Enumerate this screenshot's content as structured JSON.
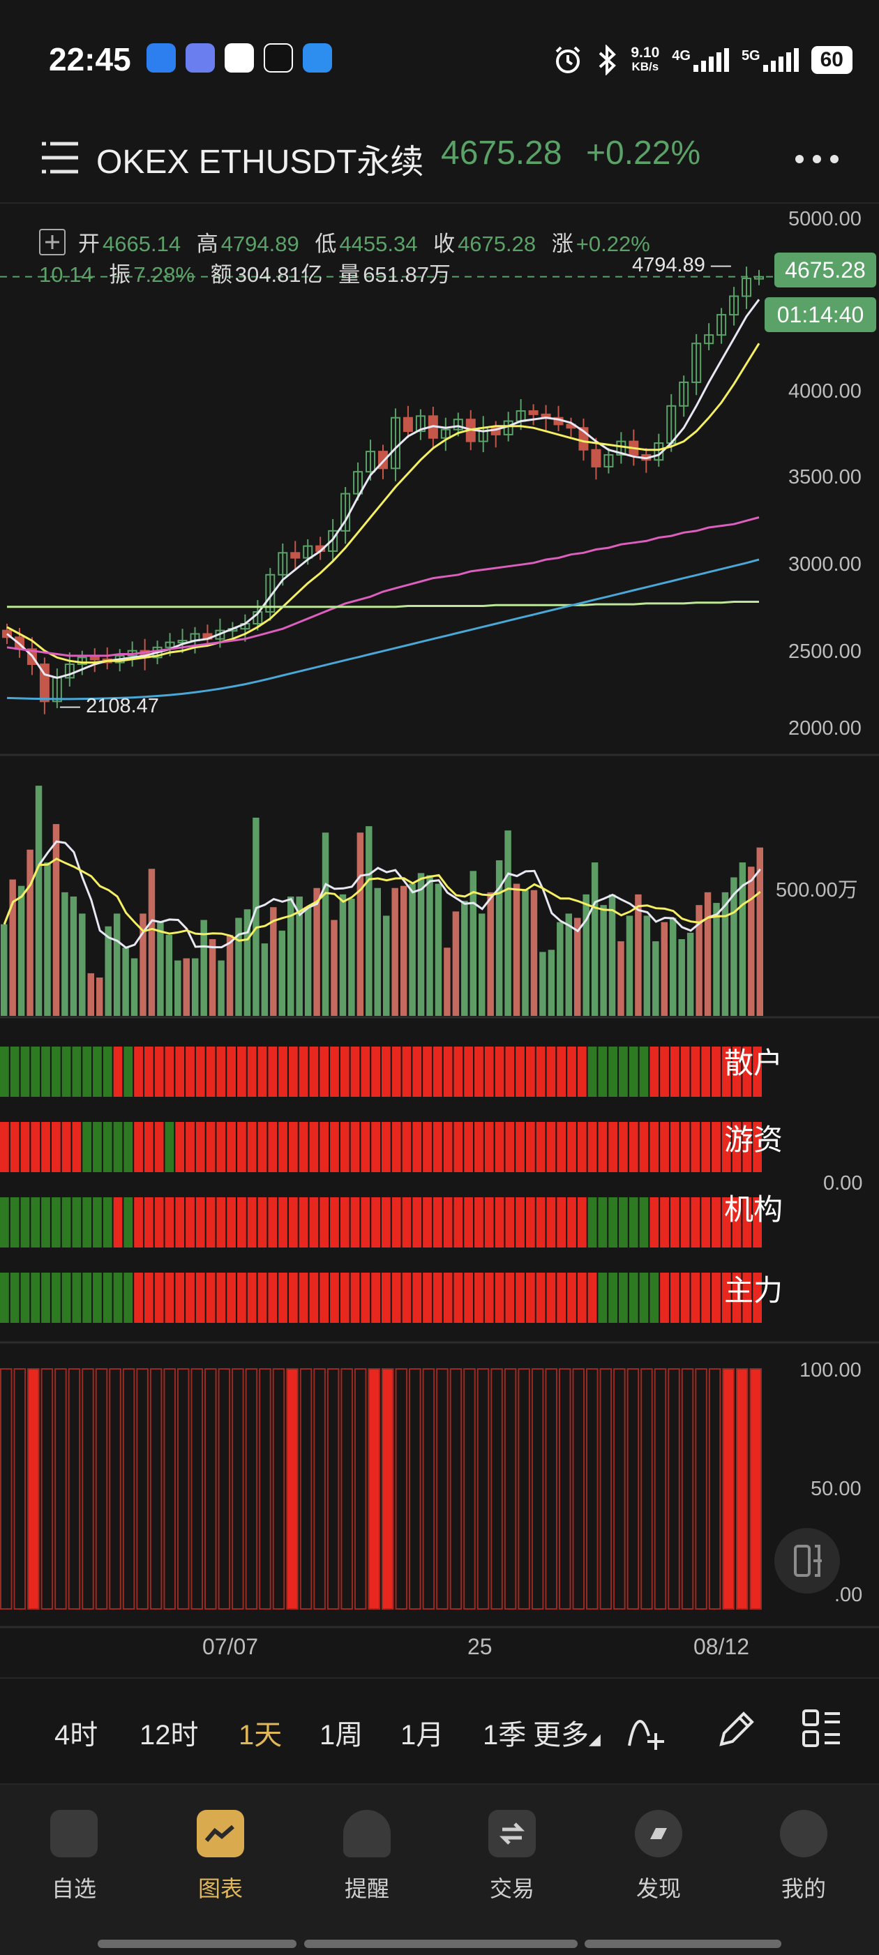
{
  "status_bar": {
    "time": "22:45",
    "net_speed_value": "9.10",
    "net_speed_unit": "KB/s",
    "sig1_label": "4G",
    "sig2_label": "5G",
    "battery": "60",
    "icons": [
      "alarm-icon",
      "bluetooth-icon"
    ]
  },
  "header": {
    "symbol": "OKEX ETHUSDT永续",
    "price": "4675.28",
    "change": "+0.22%"
  },
  "ohlc": {
    "open_label": "开",
    "open": "4665.14",
    "high_label": "高",
    "high": "4794.89",
    "low_label": "低",
    "low": "4455.34",
    "close_label": "收",
    "close": "4675.28",
    "chg_label": "涨",
    "chg": "+0.22%",
    "chg_abs": "10.14",
    "amp_label": "振",
    "amp": "7.28%",
    "amount_label": "额",
    "amount": "304.81亿",
    "vol_label": "量",
    "vol": "651.87万"
  },
  "chart_data": {
    "type": "candlestick",
    "y_ticks": [
      "5000.00",
      "4000.00",
      "3500.00",
      "3000.00",
      "2500.00",
      "2000.00"
    ],
    "ylim": [
      2000,
      5000
    ],
    "high_marker": "4794.89",
    "low_marker": "2108.47",
    "last_price_tag": "4675.28",
    "countdown_tag": "01:14:40",
    "x_labels": [
      "07/07",
      "25",
      "08/12"
    ],
    "closes": [
      2540,
      2470,
      2380,
      2160,
      2300,
      2380,
      2420,
      2410,
      2390,
      2430,
      2460,
      2420,
      2480,
      2510,
      2520,
      2560,
      2530,
      2580,
      2590,
      2620,
      2690,
      2910,
      3040,
      3010,
      3080,
      3050,
      3170,
      3390,
      3520,
      3640,
      3540,
      3840,
      3760,
      3850,
      3720,
      3770,
      3830,
      3700,
      3780,
      3740,
      3820,
      3880,
      3860,
      3840,
      3800,
      3780,
      3650,
      3550,
      3620,
      3700,
      3620,
      3590,
      3690,
      3910,
      4050,
      4280,
      4330,
      4450,
      4560,
      4665,
      4675
    ],
    "ma_lines": [
      {
        "color": "#e8e8f4",
        "values": [
          2560,
          2500,
          2430,
          2320,
          2300,
          2320,
          2350,
          2380,
          2400,
          2410,
          2420,
          2430,
          2450,
          2470,
          2500,
          2520,
          2530,
          2560,
          2590,
          2620,
          2680,
          2780,
          2880,
          2940,
          3000,
          3050,
          3120,
          3230,
          3370,
          3500,
          3580,
          3660,
          3730,
          3770,
          3790,
          3780,
          3790,
          3770,
          3760,
          3770,
          3790,
          3820,
          3830,
          3840,
          3830,
          3810,
          3760,
          3700,
          3650,
          3630,
          3610,
          3600,
          3620,
          3690,
          3780,
          3910,
          4050,
          4180,
          4310,
          4440,
          4540
        ]
      },
      {
        "color": "#f5ef62",
        "values": [
          2600,
          2560,
          2520,
          2460,
          2420,
          2400,
          2390,
          2390,
          2400,
          2400,
          2410,
          2420,
          2430,
          2450,
          2460,
          2480,
          2490,
          2510,
          2530,
          2560,
          2600,
          2650,
          2720,
          2790,
          2860,
          2920,
          2990,
          3070,
          3160,
          3250,
          3340,
          3430,
          3510,
          3590,
          3660,
          3710,
          3750,
          3770,
          3780,
          3790,
          3790,
          3790,
          3780,
          3760,
          3740,
          3720,
          3700,
          3690,
          3680,
          3670,
          3660,
          3650,
          3650,
          3670,
          3700,
          3760,
          3840,
          3930,
          4040,
          4160,
          4280
        ]
      },
      {
        "color": "#dc5fbe",
        "values": [
          2480,
          2470,
          2460,
          2450,
          2440,
          2430,
          2430,
          2430,
          2430,
          2440,
          2440,
          2450,
          2460,
          2470,
          2480,
          2490,
          2500,
          2510,
          2520,
          2530,
          2550,
          2570,
          2590,
          2620,
          2650,
          2680,
          2710,
          2740,
          2760,
          2780,
          2810,
          2830,
          2850,
          2870,
          2890,
          2900,
          2910,
          2930,
          2940,
          2950,
          2960,
          2970,
          2980,
          3000,
          3010,
          3030,
          3040,
          3060,
          3070,
          3090,
          3100,
          3110,
          3130,
          3140,
          3160,
          3170,
          3190,
          3200,
          3210,
          3230,
          3250
        ]
      },
      {
        "color": "#bde89a",
        "values": [
          2720,
          2720,
          2720,
          2720,
          2720,
          2720,
          2720,
          2720,
          2720,
          2720,
          2720,
          2720,
          2720,
          2720,
          2720,
          2720,
          2720,
          2720,
          2720,
          2720,
          2720,
          2720,
          2720,
          2720,
          2720,
          2720,
          2720,
          2720,
          2720,
          2720,
          2720,
          2720,
          2725,
          2725,
          2725,
          2725,
          2725,
          2725,
          2725,
          2730,
          2730,
          2730,
          2730,
          2730,
          2730,
          2730,
          2730,
          2735,
          2735,
          2735,
          2735,
          2740,
          2740,
          2740,
          2740,
          2745,
          2745,
          2745,
          2750,
          2750,
          2750
        ]
      },
      {
        "color": "#4aa8d8",
        "values": [
          2180,
          2178,
          2176,
          2175,
          2174,
          2174,
          2175,
          2176,
          2178,
          2180,
          2183,
          2187,
          2192,
          2198,
          2205,
          2214,
          2224,
          2235,
          2248,
          2262,
          2278,
          2296,
          2314,
          2332,
          2350,
          2368,
          2386,
          2404,
          2422,
          2440,
          2458,
          2476,
          2494,
          2512,
          2530,
          2548,
          2566,
          2584,
          2602,
          2620,
          2638,
          2656,
          2674,
          2692,
          2710,
          2728,
          2746,
          2764,
          2782,
          2800,
          2818,
          2836,
          2854,
          2872,
          2890,
          2908,
          2926,
          2944,
          2962,
          2980,
          3000
        ]
      }
    ]
  },
  "volume": {
    "axis_label": "500.00万",
    "values": [
      430,
      640,
      610,
      780,
      1080,
      720,
      900,
      580,
      560,
      480,
      200,
      180,
      420,
      480,
      320,
      270,
      480,
      690,
      440,
      380,
      260,
      270,
      270,
      450,
      360,
      260,
      380,
      460,
      500,
      930,
      340,
      510,
      400,
      560,
      560,
      510,
      600,
      860,
      450,
      570,
      550,
      860,
      890,
      600,
      470,
      600,
      610,
      620,
      670,
      660,
      620,
      320,
      490,
      540,
      680,
      480,
      580,
      730,
      870,
      620,
      590,
      590,
      300,
      310,
      440,
      480,
      460,
      570,
      720,
      520,
      570,
      350,
      470,
      570,
      470,
      350,
      440,
      460,
      360,
      390,
      520,
      580,
      530,
      580,
      650,
      720,
      700,
      790
    ]
  },
  "sentiment": {
    "axis_label": "0.00",
    "rows": [
      {
        "label": "散户",
        "pattern": "GGGGGGGGGGGRGRRRRRRRRRRRRRRRRRRRRRRRRRRRRRRRRRRRRRRRRRRRRGGGGGGRRRRRRRRRRR"
      },
      {
        "label": "游资",
        "pattern": "RRRRRRRRGGGGGRRRGRRRRRRRRRRRRRRRRRRRRRRRRRRRRRRRRRRRRRRRRRRRRRRRRRRRRRRRRR"
      },
      {
        "label": "机构",
        "pattern": "GGGGGGGGGGGRGRRRRRRRRRRRRRRRRRRRRRRRRRRRRRRRRRRRRRRRRRRRRGGGGGGRRRRRRRRRRR"
      },
      {
        "label": "主力",
        "pattern": "GGGGGGGGGGGGGRRRRRRRRRRRRRRRRRRRRRRRRRRRRRRRRRRRRRRRRRRRRRGGGGGGRRRRRRRRRR"
      }
    ]
  },
  "bars_panel": {
    "labels": [
      "100.00",
      "50.00",
      ".00"
    ],
    "filled": [
      2,
      21,
      27,
      28,
      53,
      54,
      55
    ]
  },
  "timeframes": {
    "items": [
      "4时",
      "12时",
      "1天",
      "1周",
      "1月",
      "1季",
      "更多"
    ],
    "active": "1天"
  },
  "nav": {
    "items": [
      "自选",
      "图表",
      "提醒",
      "交易",
      "发现",
      "我的"
    ],
    "active": "图表"
  }
}
